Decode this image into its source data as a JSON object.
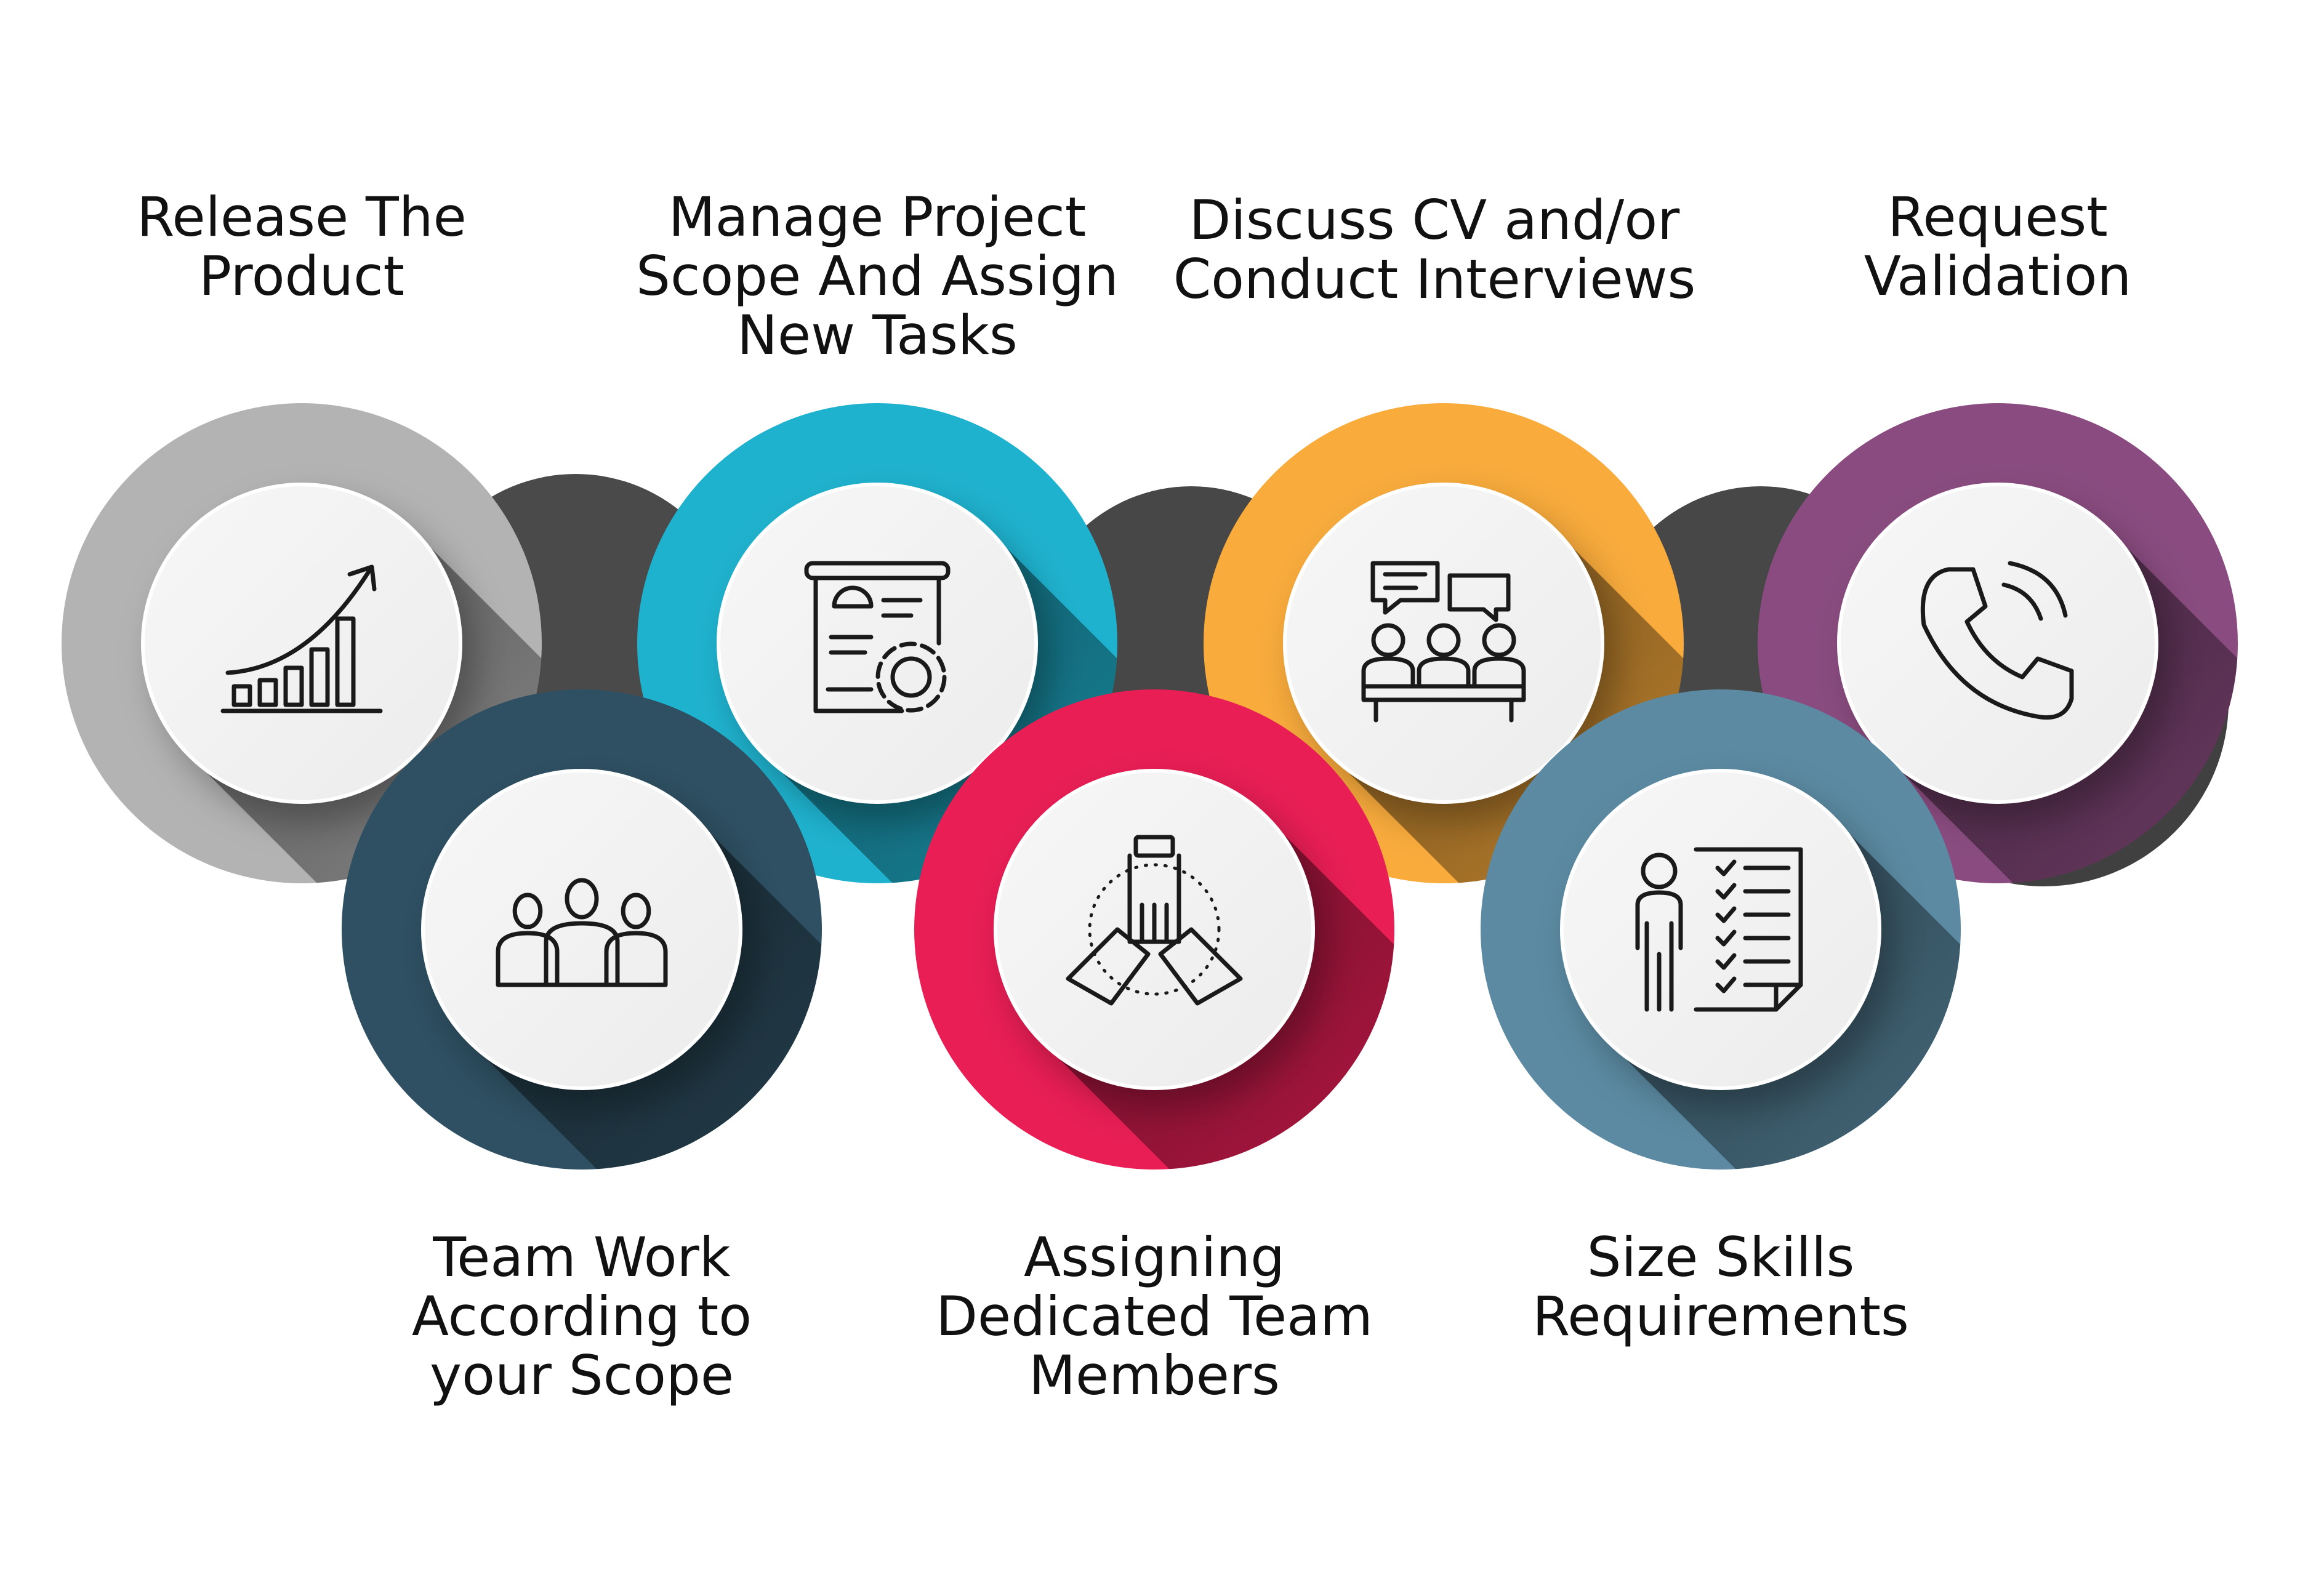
{
  "steps": [
    {
      "id": "release",
      "lines": [
        "Release The",
        "Product"
      ],
      "color": "#b3b3b3",
      "icon": "growth-chart-icon"
    },
    {
      "id": "teamwork",
      "lines": [
        "Team Work",
        "According to",
        "your Scope"
      ],
      "color": "#2e5062",
      "icon": "team-icon"
    },
    {
      "id": "manage",
      "lines": [
        "Manage Project",
        "Scope And Assign",
        "New Tasks"
      ],
      "color": "#1fb2ce",
      "icon": "project-planning-icon"
    },
    {
      "id": "assigning",
      "lines": [
        "Assigning",
        "Dedicated Team",
        "Members"
      ],
      "color": "#e81e55",
      "icon": "teamwork-hands-icon"
    },
    {
      "id": "discuss",
      "lines": [
        "Discuss CV and/or",
        "Conduct Interviews"
      ],
      "color": "#f9ab3c",
      "icon": "interview-icon"
    },
    {
      "id": "size",
      "lines": [
        "Size Skills",
        "Requirements"
      ],
      "color": "#5b8aa2",
      "icon": "skills-checklist-icon"
    },
    {
      "id": "request",
      "lines": [
        "Request",
        "Validation"
      ],
      "color": "#8a4c80",
      "icon": "phone-call-icon"
    }
  ]
}
